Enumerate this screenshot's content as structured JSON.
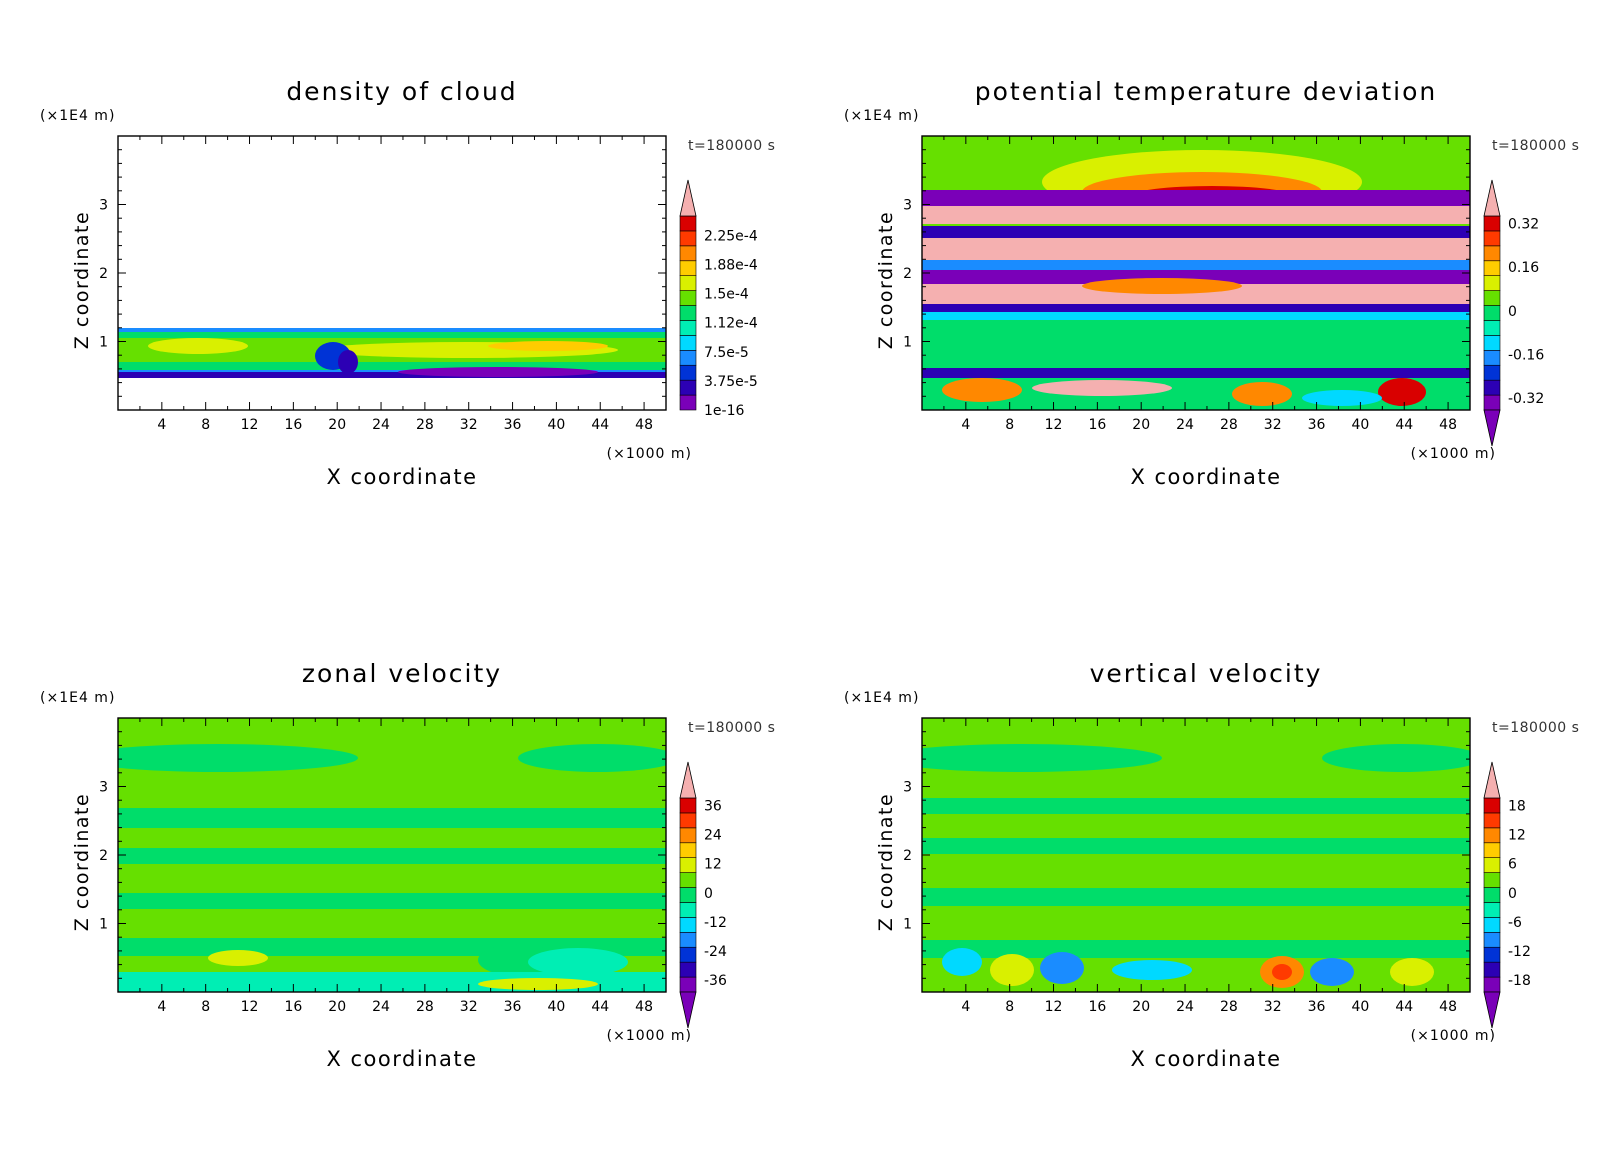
{
  "colors": {
    "rainbow": [
      "#7a00b8",
      "#2c00b4",
      "#0033d6",
      "#1a8cff",
      "#00d9ff",
      "#00eeb4",
      "#00dd6a",
      "#66e000",
      "#d9f000",
      "#ffcc00",
      "#ff8800",
      "#ff3a00",
      "#d90000",
      "#f5b0b0"
    ],
    "background": "#ffffff",
    "frame": "#000000"
  },
  "chart_data": [
    {
      "type": "heatmap",
      "title": "density of cloud",
      "xlabel": "X coordinate",
      "ylabel": "Z coordinate",
      "x_unit": "(×1000 m)",
      "y_unit": "(×1E4 m)",
      "time_label": "t=180000 s",
      "xlim": [
        0,
        50
      ],
      "ylim": [
        0,
        4
      ],
      "x_ticks": [
        "4",
        "8",
        "12",
        "16",
        "20",
        "24",
        "28",
        "32",
        "36",
        "40",
        "44",
        "48"
      ],
      "y_ticks": [
        "1",
        "2",
        "3"
      ],
      "colorbar_labels": [
        "2.25e-4",
        "1.88e-4",
        "1.5e-4",
        "1.12e-4",
        "7.5e-5",
        "3.75e-5",
        "1e-16"
      ],
      "colorbar_arrow_bottom": false
    },
    {
      "type": "heatmap",
      "title": "potential temperature deviation",
      "xlabel": "X coordinate",
      "ylabel": "Z coordinate",
      "x_unit": "(×1000 m)",
      "y_unit": "(×1E4 m)",
      "time_label": "t=180000 s",
      "xlim": [
        0,
        50
      ],
      "ylim": [
        0,
        4
      ],
      "x_ticks": [
        "4",
        "8",
        "12",
        "16",
        "20",
        "24",
        "28",
        "32",
        "36",
        "40",
        "44",
        "48"
      ],
      "y_ticks": [
        "1",
        "2",
        "3"
      ],
      "colorbar_labels": [
        "0.32",
        "0.16",
        "0",
        "-0.16",
        "-0.32"
      ],
      "colorbar_arrow_bottom": true
    },
    {
      "type": "heatmap",
      "title": "zonal velocity",
      "xlabel": "X coordinate",
      "ylabel": "Z coordinate",
      "x_unit": "(×1000 m)",
      "y_unit": "(×1E4 m)",
      "time_label": "t=180000 s",
      "xlim": [
        0,
        50
      ],
      "ylim": [
        0,
        4
      ],
      "x_ticks": [
        "4",
        "8",
        "12",
        "16",
        "20",
        "24",
        "28",
        "32",
        "36",
        "40",
        "44",
        "48"
      ],
      "y_ticks": [
        "1",
        "2",
        "3"
      ],
      "colorbar_labels": [
        "36",
        "24",
        "12",
        "0",
        "-12",
        "-24",
        "-36"
      ],
      "colorbar_arrow_bottom": true
    },
    {
      "type": "heatmap",
      "title": "vertical velocity",
      "xlabel": "X coordinate",
      "ylabel": "Z coordinate",
      "x_unit": "(×1000 m)",
      "y_unit": "(×1E4 m)",
      "time_label": "t=180000 s",
      "xlim": [
        0,
        50
      ],
      "ylim": [
        0,
        4
      ],
      "x_ticks": [
        "4",
        "8",
        "12",
        "16",
        "20",
        "24",
        "28",
        "32",
        "36",
        "40",
        "44",
        "48"
      ],
      "y_ticks": [
        "1",
        "2",
        "3"
      ],
      "colorbar_labels": [
        "18",
        "12",
        "6",
        "0",
        "-6",
        "-12",
        "-18"
      ],
      "colorbar_arrow_bottom": true
    }
  ]
}
